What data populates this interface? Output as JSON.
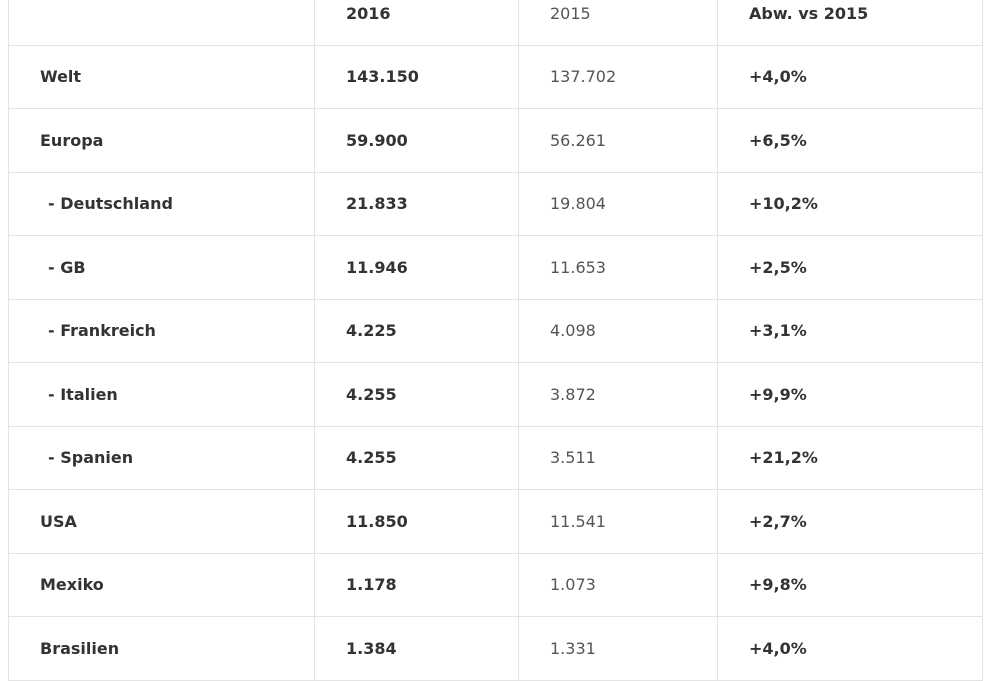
{
  "table": {
    "header": [
      "2016",
      "2015",
      "Abw. vs 2015"
    ],
    "rows": [
      [
        "Welt",
        "143.150",
        "137.702",
        "+4,0%"
      ],
      [
        "Europa",
        "59.900",
        "56.261",
        "+6,5%"
      ],
      [
        "- Deutschland",
        "21.833",
        "19.804",
        "+10,2%"
      ],
      [
        "- GB",
        "11.946",
        "11.653",
        "+2,5%"
      ],
      [
        "- Frankreich",
        "4.225",
        "4.098",
        "+3,1%"
      ],
      [
        "- Italien",
        "4.255",
        "3.872",
        "+9,9%"
      ],
      [
        "- Spanien",
        "4.255",
        "3.511",
        "+21,2%"
      ],
      [
        "USA",
        "11.850",
        "11.541",
        "+2,7%"
      ],
      [
        "Mexiko",
        "1.178",
        "1.073",
        "+9,8%"
      ],
      [
        "Brasilien",
        "1.384",
        "1.331",
        "+4,0%"
      ]
    ]
  }
}
